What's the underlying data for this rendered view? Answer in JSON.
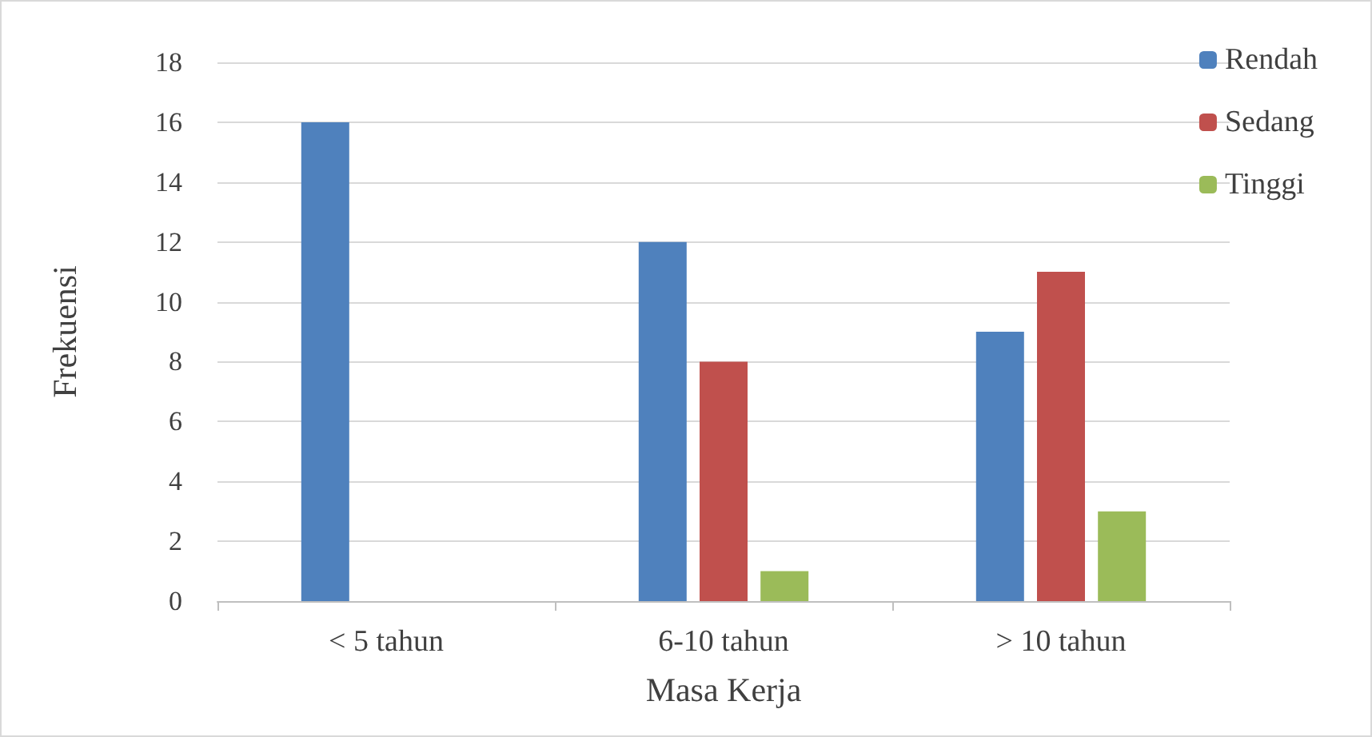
{
  "chart_data": {
    "type": "bar",
    "categories": [
      "< 5 tahun",
      "6-10 tahun",
      "> 10 tahun"
    ],
    "series": [
      {
        "name": "Rendah",
        "color": "#4f81bd",
        "values": [
          16,
          12,
          9
        ]
      },
      {
        "name": "Sedang",
        "color": "#c0504d",
        "values": [
          0,
          8,
          11
        ]
      },
      {
        "name": "Tinggi",
        "color": "#9bbb59",
        "values": [
          0,
          1,
          3
        ]
      }
    ],
    "xlabel": "Masa Kerja",
    "ylabel": "Frekuensi",
    "ylim": [
      0,
      18
    ],
    "yticks": [
      0,
      2,
      4,
      6,
      8,
      10,
      12,
      14,
      16,
      18
    ],
    "grid": "y",
    "legend": "top right"
  }
}
